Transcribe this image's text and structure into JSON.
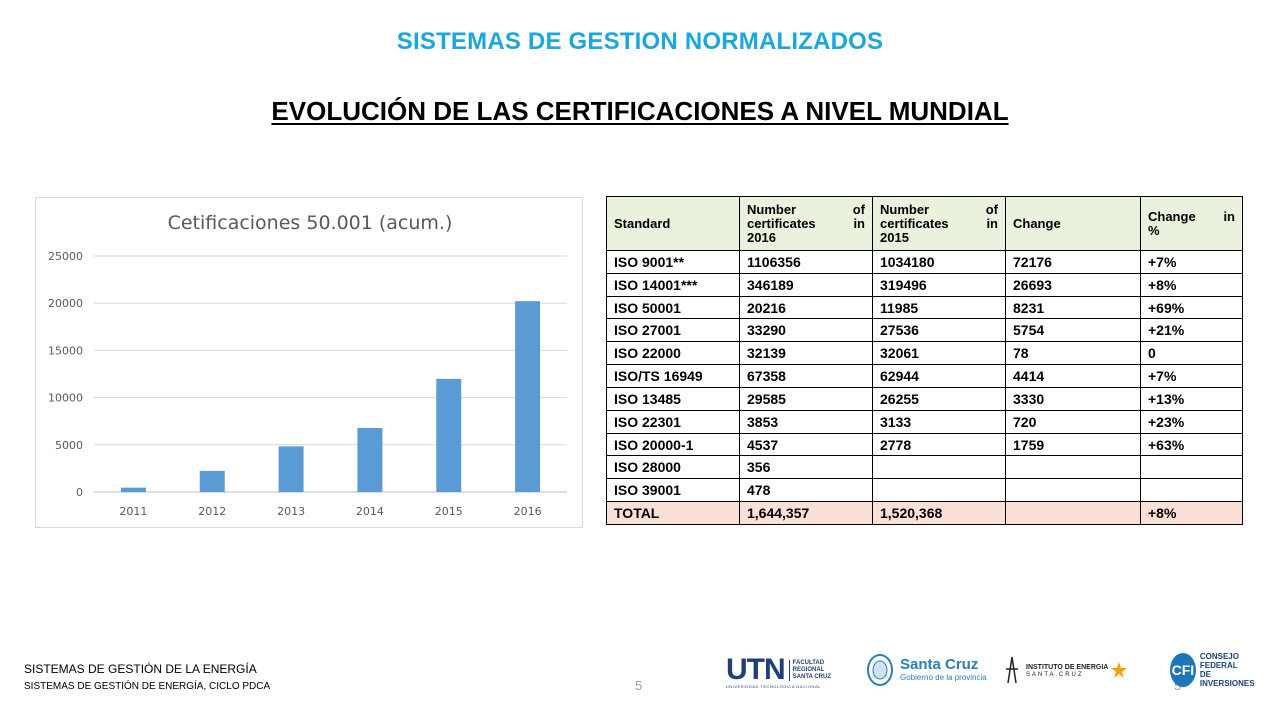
{
  "header": {
    "title": "SISTEMAS DE GESTION NORMALIZADOS",
    "subtitle": "EVOLUCIÓN DE LAS CERTIFICACIONES A NIVEL MUNDIAL"
  },
  "chart_data": {
    "type": "bar",
    "title": "Cetificaciones 50.001 (acum.)",
    "categories": [
      "2011",
      "2012",
      "2013",
      "2014",
      "2015",
      "2016"
    ],
    "values": [
      460,
      2240,
      4830,
      6780,
      11985,
      20216
    ],
    "yticks": [
      "0",
      "5000",
      "10000",
      "15000",
      "20000",
      "25000"
    ],
    "ylim": [
      0,
      25000
    ],
    "grid": true,
    "bar_color": "#5b9bd5",
    "xlabel": "",
    "ylabel": ""
  },
  "table": {
    "headers": [
      [
        "Standard"
      ],
      [
        "Number",
        "of",
        "certificates",
        "in",
        "2016"
      ],
      [
        "Number",
        "of",
        "certificates",
        "in",
        "2015"
      ],
      [
        "Change"
      ],
      [
        "Change",
        "in",
        "%"
      ]
    ],
    "rows": [
      [
        "ISO 9001**",
        "1106356",
        "1034180",
        "72176",
        "+7%"
      ],
      [
        "ISO 14001***",
        "346189",
        "319496",
        "26693",
        "+8%"
      ],
      [
        "ISO 50001",
        "20216",
        "11985",
        "8231",
        "+69%"
      ],
      [
        "ISO 27001",
        "33290",
        "27536",
        "5754",
        "+21%"
      ],
      [
        "ISO 22000",
        "32139",
        "32061",
        "78",
        "0"
      ],
      [
        "ISO/TS 16949",
        "67358",
        "62944",
        "4414",
        "+7%"
      ],
      [
        "ISO 13485",
        "29585",
        "26255",
        "3330",
        "+13%"
      ],
      [
        "ISO 22301",
        "3853",
        "3133",
        "720",
        "+23%"
      ],
      [
        "ISO 20000-1",
        "4537",
        "2778",
        "1759",
        "+63%"
      ],
      [
        "ISO 28000",
        "356",
        "",
        "",
        ""
      ],
      [
        "ISO 39001",
        "478",
        "",
        "",
        ""
      ]
    ],
    "total": [
      "TOTAL",
      "1,644,357",
      "1,520,368",
      "",
      "+8%"
    ],
    "header_bg": "#eaf1dd",
    "total_bg": "#fbe0d6"
  },
  "footer": {
    "line1": "SISTEMAS DE GESTIÓN DE LA ENERGÍA",
    "line2": "SISTEMAS DE GESTIÓN DE ENERGÍA, CICLO PDCA",
    "page_number": "5",
    "page_number_right": "5"
  },
  "logos": {
    "utn_mark": "UTN",
    "utn_sub_1": "FACULTAD",
    "utn_sub_2": "REGIONAL",
    "utn_sub_3": "SANTA CRUZ",
    "utn_under": "UNIVERSIDAD TECNOLÓGICA NACIONAL",
    "santa_cruz_title": "Santa Cruz",
    "santa_cruz_sub": "Gobierno de la provincia",
    "ie_title": "INSTITUTO DE ENERGIA",
    "ie_sub": "SANTA CRUZ",
    "cfi_mark": "CFI",
    "cfi_line1": "CONSEJO FEDERAL",
    "cfi_line2": "DE INVERSIONES"
  }
}
